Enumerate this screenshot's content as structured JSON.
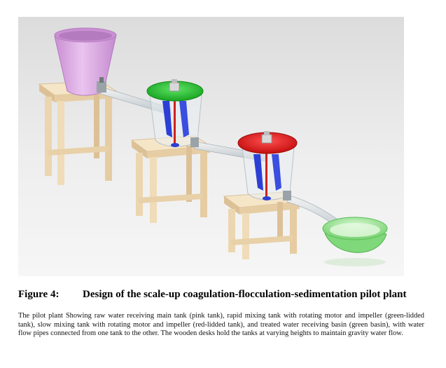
{
  "figure": {
    "label": "Figure 4:",
    "title": "Design of the scale-up coagulation-flocculation-sedimentation pilot plant",
    "caption": "The pilot plant Showing raw water receiving main tank (pink tank), rapid mixing tank with rotating motor and impeller (green-lidded tank), slow mixing tank with rotating motor and impeller (red-lidded tank), and treated water receiving basin (green basin), with water flow pipes connected from one tank to the other. The wooden desks hold the tanks at varying heights to maintain gravity water flow."
  },
  "colors": {
    "main_tank": "#d9a6e0",
    "rapid_mix_lid": "#1fb82a",
    "slow_mix_lid": "#e01616",
    "basin": "#8fe08a",
    "impeller": "#2b3fd6",
    "wood": "#f3dfbf"
  }
}
